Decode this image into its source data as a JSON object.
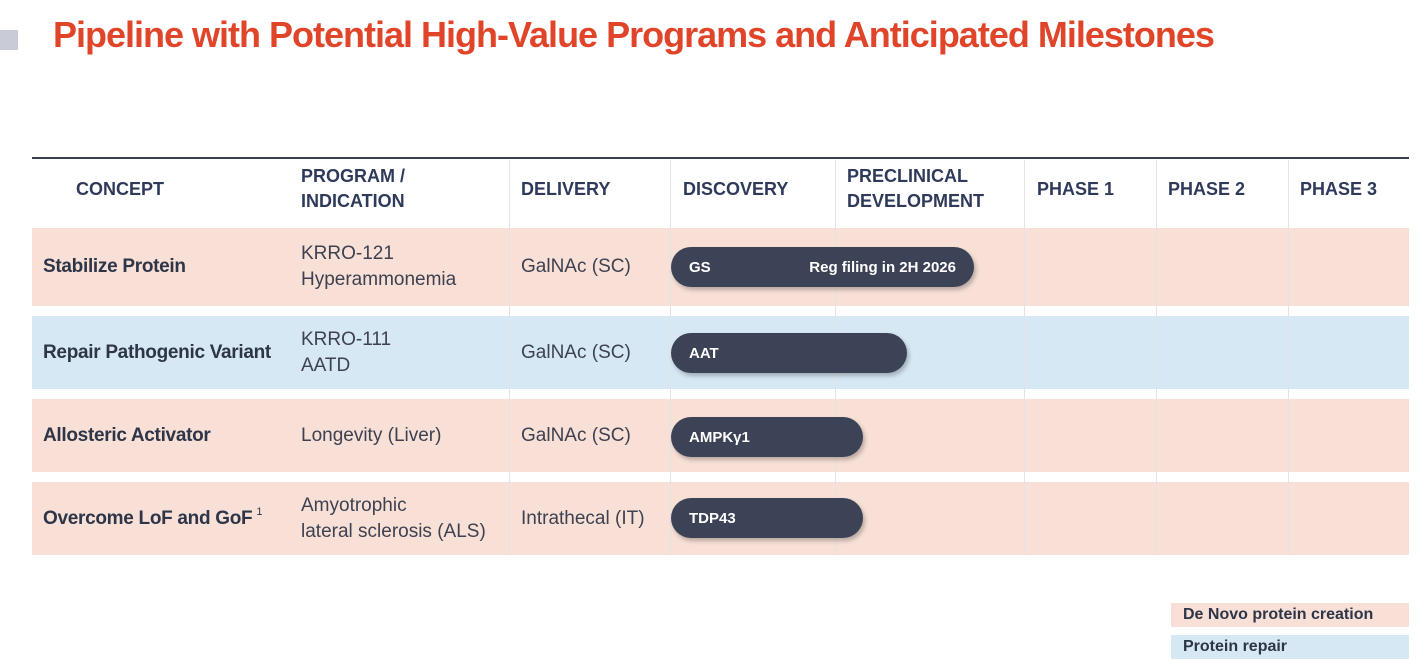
{
  "title": "Pipeline with Potential High-Value Programs and Anticipated Milestones",
  "headers": {
    "concept": "CONCEPT",
    "program_1": "PROGRAM /",
    "program_2": "INDICATION",
    "delivery": "DELIVERY",
    "discovery": "DISCOVERY",
    "preclinical_1": "PRECLINICAL",
    "preclinical_2": "DEVELOPMENT",
    "phase1": "PHASE 1",
    "phase2": "PHASE 2",
    "phase3": "PHASE 3"
  },
  "rows": [
    {
      "category": "De Novo protein creation",
      "color": "#f8e0d7",
      "concept": "Stabilize Protein",
      "program_line1": "KRRO-121",
      "program_line2": "Hyperammonemia",
      "delivery": "GalNAc (SC)",
      "bar_label": "GS",
      "milestone": "Reg filing in 2H 2026",
      "stage": "Preclinical Development"
    },
    {
      "category": "Protein repair",
      "color": "#d6e8f4",
      "concept": "Repair Pathogenic Variant",
      "program_line1": "KRRO-111",
      "program_line2": "AATD",
      "delivery": "GalNAc (SC)",
      "bar_label": "AAT",
      "stage": "Preclinical Development"
    },
    {
      "category": "De Novo protein creation",
      "color": "#f8e0d7",
      "concept": "Allosteric Activator",
      "program_line1": "Longevity (Liver)",
      "delivery": "GalNAc (SC)",
      "bar_label": "AMPKγ1",
      "stage": "Discovery"
    },
    {
      "category": "De Novo protein creation",
      "color": "#f8e0d7",
      "concept": "Overcome LoF and GoF",
      "footnote": "1",
      "program_line1": "Amyotrophic",
      "program_line2": "lateral sclerosis (ALS)",
      "delivery": "Intrathecal (IT)",
      "bar_label": "TDP43",
      "stage": "Discovery"
    }
  ],
  "legend": [
    {
      "label": "De Novo protein creation",
      "color": "#f8e0d7"
    },
    {
      "label": "Protein repair",
      "color": "#d6e8f4"
    }
  ],
  "colors": {
    "title": "#e0452a",
    "bar": "#3c4356",
    "pink_row": "#f8e0d7",
    "blue_row": "#d6e8f4"
  }
}
